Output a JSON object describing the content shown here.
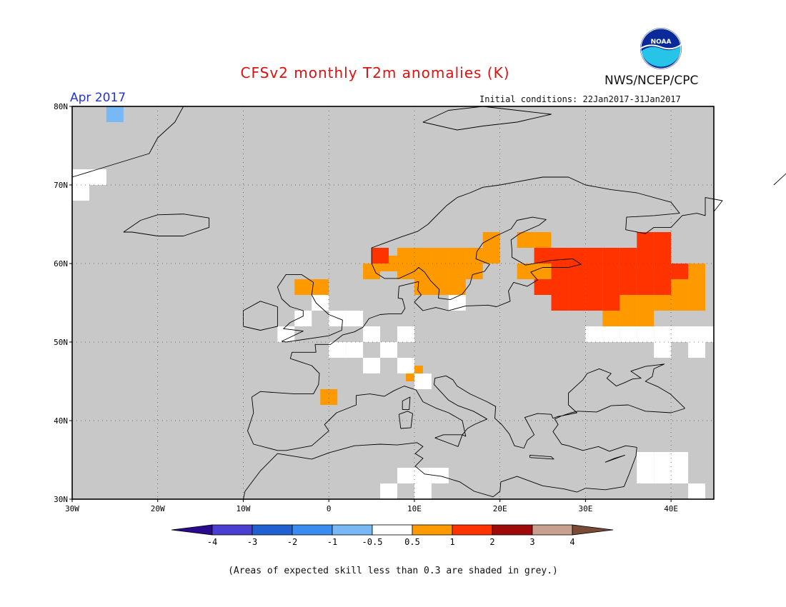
{
  "title": "CFSv2 monthly T2m anomalies (K)",
  "subtitle_month": "Apr 2017",
  "subtitle_init": "Initial conditions: 22Jan2017-31Jan2017",
  "agency": "NWS/NCEP/CPC",
  "logo_text": "NOAA",
  "footnote": "(Areas of expected skill less than 0.3 are shaded in grey.)",
  "map": {
    "lon_range": [
      -30,
      45
    ],
    "lat_range": [
      30,
      80
    ],
    "lat_ticks": [
      "30N",
      "40N",
      "50N",
      "60N",
      "70N",
      "80N"
    ],
    "lon_ticks": [
      "30W",
      "20W",
      "10W",
      "0",
      "10E",
      "20E",
      "30E",
      "40E"
    ],
    "grid": "dotted",
    "background_color": "#c8c8c8",
    "cell_size_deg": 2,
    "cells_lon_lat": {
      "orange": [
        [
          4,
          58
        ],
        [
          6,
          59
        ],
        [
          8,
          58
        ],
        [
          8,
          60
        ],
        [
          10,
          58
        ],
        [
          10,
          60
        ],
        [
          12,
          60
        ],
        [
          12,
          58
        ],
        [
          14,
          60
        ],
        [
          14,
          58
        ],
        [
          16,
          58
        ],
        [
          16,
          60
        ],
        [
          18,
          60
        ],
        [
          18,
          62
        ],
        [
          12,
          56
        ],
        [
          14,
          56
        ],
        [
          10,
          56
        ],
        [
          -4,
          56
        ],
        [
          -2,
          56
        ],
        [
          22,
          62
        ],
        [
          24,
          62
        ],
        [
          22,
          58
        ],
        [
          24,
          58
        ],
        [
          34,
          54
        ],
        [
          36,
          54
        ],
        [
          38,
          54
        ],
        [
          40,
          54
        ],
        [
          42,
          54
        ],
        [
          40,
          56
        ],
        [
          42,
          56
        ],
        [
          42,
          58
        ],
        [
          32,
          52
        ],
        [
          34,
          52
        ],
        [
          36,
          52
        ],
        [
          -1,
          42
        ],
        [
          9,
          45
        ]
      ],
      "red": [
        [
          24,
          60
        ],
        [
          26,
          60
        ],
        [
          26,
          58
        ],
        [
          28,
          58
        ],
        [
          28,
          60
        ],
        [
          30,
          60
        ],
        [
          32,
          60
        ],
        [
          34,
          60
        ],
        [
          36,
          60
        ],
        [
          38,
          60
        ],
        [
          36,
          62
        ],
        [
          38,
          62
        ],
        [
          34,
          58
        ],
        [
          36,
          58
        ],
        [
          38,
          58
        ],
        [
          40,
          58
        ],
        [
          30,
          58
        ],
        [
          32,
          58
        ],
        [
          24,
          56
        ],
        [
          26,
          56
        ],
        [
          28,
          56
        ],
        [
          30,
          56
        ],
        [
          32,
          56
        ],
        [
          34,
          56
        ],
        [
          36,
          56
        ],
        [
          38,
          56
        ],
        [
          26,
          54
        ],
        [
          28,
          54
        ],
        [
          30,
          54
        ],
        [
          32,
          54
        ],
        [
          5,
          60
        ]
      ],
      "white": [
        [
          -30,
          70
        ],
        [
          -28,
          70
        ],
        [
          -30,
          68
        ],
        [
          -2,
          54
        ],
        [
          0,
          52
        ],
        [
          -4,
          52
        ],
        [
          2,
          52
        ],
        [
          -6,
          50
        ],
        [
          0,
          48
        ],
        [
          2,
          48
        ],
        [
          4,
          50
        ],
        [
          6,
          48
        ],
        [
          8,
          50
        ],
        [
          4,
          46
        ],
        [
          8,
          46
        ],
        [
          10,
          44
        ],
        [
          14,
          54
        ],
        [
          30,
          50
        ],
        [
          32,
          50
        ],
        [
          34,
          50
        ],
        [
          36,
          50
        ],
        [
          38,
          50
        ],
        [
          40,
          50
        ],
        [
          42,
          50
        ],
        [
          44,
          50
        ],
        [
          38,
          48
        ],
        [
          42,
          48
        ],
        [
          36,
          34
        ],
        [
          38,
          34
        ],
        [
          40,
          34
        ],
        [
          36,
          32
        ],
        [
          38,
          32
        ],
        [
          40,
          32
        ],
        [
          8,
          32
        ],
        [
          10,
          32
        ],
        [
          12,
          32
        ],
        [
          6,
          30
        ],
        [
          10,
          30
        ],
        [
          42,
          30
        ]
      ],
      "light_blue": [
        [
          -26,
          78
        ]
      ]
    }
  },
  "colorbar": {
    "labels": [
      "-4",
      "-3",
      "-2",
      "-1",
      "-0.5",
      "0.5",
      "1",
      "2",
      "3",
      "4"
    ],
    "colors": [
      "#2a0a8c",
      "#4a3fd0",
      "#2060d0",
      "#3b8cf0",
      "#78b8f5",
      "#ffffff",
      "#ff9900",
      "#ff3300",
      "#9e0a0a",
      "#c9a08d",
      "#7a4a36"
    ]
  }
}
